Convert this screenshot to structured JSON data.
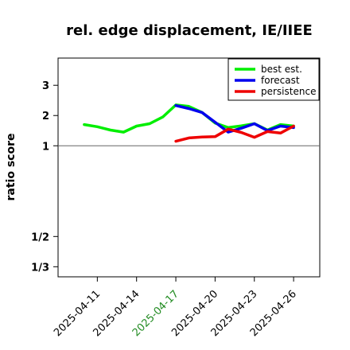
{
  "chart_data": {
    "type": "line",
    "title": "rel. edge displacement, IE/IIEE",
    "xlabel": "",
    "ylabel": "ratio score",
    "y_scale": "reciprocal",
    "ylim": [
      0.3,
      3.9
    ],
    "reference_line": 1,
    "x_tick_labels": [
      "2025-04-11",
      "2025-04-14",
      "2025-04-17",
      "2025-04-20",
      "2025-04-23",
      "2025-04-26"
    ],
    "highlighted_tick": "2025-04-17",
    "highlight_color": "#228B22",
    "y_tick_labels": [
      "3",
      "2",
      "1",
      "1/2",
      "1/3"
    ],
    "grid": false,
    "legend_position": "top-right",
    "series": [
      {
        "name": "best est.",
        "color": "#00ee00",
        "x": [
          "2025-04-10",
          "2025-04-11",
          "2025-04-12",
          "2025-04-13",
          "2025-04-14",
          "2025-04-15",
          "2025-04-16",
          "2025-04-17",
          "2025-04-18",
          "2025-04-19",
          "2025-04-20",
          "2025-04-21",
          "2025-04-22",
          "2025-04-23",
          "2025-04-24",
          "2025-04-25",
          "2025-04-26"
        ],
        "y": [
          1.7,
          1.63,
          1.52,
          1.45,
          1.65,
          1.73,
          1.95,
          2.35,
          2.3,
          2.1,
          1.75,
          1.6,
          1.66,
          1.73,
          1.52,
          1.7,
          1.65
        ]
      },
      {
        "name": "forecast",
        "color": "#0000ee",
        "x": [
          "2025-04-17",
          "2025-04-18",
          "2025-04-19",
          "2025-04-20",
          "2025-04-21",
          "2025-04-22",
          "2025-04-23",
          "2025-04-24",
          "2025-04-25",
          "2025-04-26"
        ],
        "y": [
          2.33,
          2.23,
          2.1,
          1.78,
          1.45,
          1.58,
          1.73,
          1.5,
          1.65,
          1.6
        ]
      },
      {
        "name": "persistence",
        "color": "#ee0000",
        "x": [
          "2025-04-17",
          "2025-04-18",
          "2025-04-19",
          "2025-04-20",
          "2025-04-21",
          "2025-04-22",
          "2025-04-23",
          "2025-04-24",
          "2025-04-25",
          "2025-04-26"
        ],
        "y": [
          1.15,
          1.26,
          1.29,
          1.3,
          1.55,
          1.44,
          1.28,
          1.47,
          1.42,
          1.65
        ]
      }
    ]
  }
}
